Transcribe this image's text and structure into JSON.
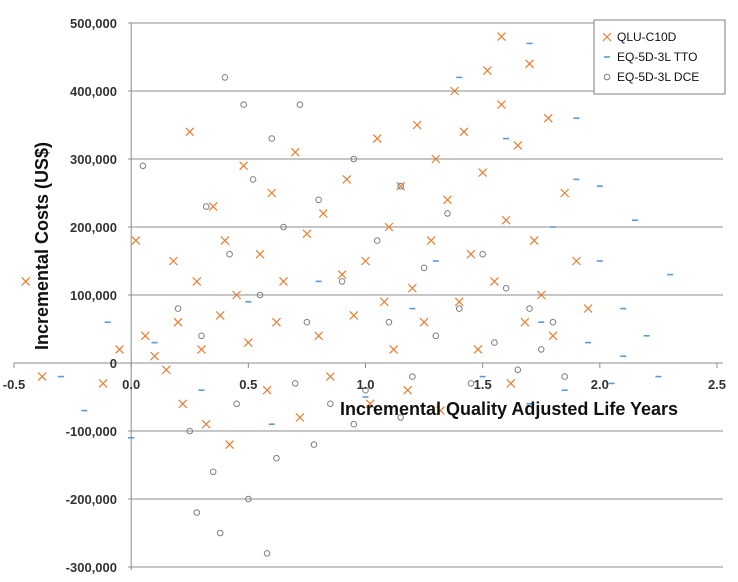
{
  "chart_data": {
    "type": "scatter",
    "title": "",
    "xlabel": "Incremental Quality Adjusted Life Years",
    "ylabel": "Incremental Costs (US$)",
    "xlim": [
      -0.5,
      2.5
    ],
    "ylim": [
      -300000,
      500000
    ],
    "x_ticks": [
      -0.5,
      0.0,
      0.5,
      1.0,
      1.5,
      2.0,
      2.5
    ],
    "x_tick_labels": [
      "-0.5",
      "0.0",
      "0.5",
      "1.0",
      "1.5",
      "2.0",
      "2.5"
    ],
    "y_ticks": [
      -300000,
      -200000,
      -100000,
      0,
      100000,
      200000,
      300000,
      400000,
      500000
    ],
    "y_tick_labels": [
      "-300,000",
      "-200,000",
      "-100,000",
      "0",
      "100,000",
      "200,000",
      "300,000",
      "400,000",
      "500,000"
    ],
    "grid": "horizontal",
    "legend_position": "top-right",
    "series": [
      {
        "name": "QLU-C10D",
        "marker": "x",
        "color": "#ED7D31",
        "values": [
          [
            -0.45,
            120000
          ],
          [
            -0.38,
            -20000
          ],
          [
            -0.12,
            -30000
          ],
          [
            -0.05,
            20000
          ],
          [
            0.02,
            180000
          ],
          [
            0.06,
            40000
          ],
          [
            0.1,
            10000
          ],
          [
            0.15,
            -10000
          ],
          [
            0.18,
            150000
          ],
          [
            0.2,
            60000
          ],
          [
            0.22,
            -60000
          ],
          [
            0.25,
            340000
          ],
          [
            0.28,
            120000
          ],
          [
            0.3,
            20000
          ],
          [
            0.32,
            -90000
          ],
          [
            0.35,
            230000
          ],
          [
            0.38,
            70000
          ],
          [
            0.4,
            180000
          ],
          [
            0.42,
            -120000
          ],
          [
            0.45,
            100000
          ],
          [
            0.48,
            290000
          ],
          [
            0.5,
            30000
          ],
          [
            0.55,
            160000
          ],
          [
            0.58,
            -40000
          ],
          [
            0.6,
            250000
          ],
          [
            0.62,
            60000
          ],
          [
            0.65,
            120000
          ],
          [
            0.7,
            310000
          ],
          [
            0.72,
            -80000
          ],
          [
            0.75,
            190000
          ],
          [
            0.8,
            40000
          ],
          [
            0.82,
            220000
          ],
          [
            0.85,
            -20000
          ],
          [
            0.9,
            130000
          ],
          [
            0.92,
            270000
          ],
          [
            0.95,
            70000
          ],
          [
            1.0,
            150000
          ],
          [
            1.02,
            -60000
          ],
          [
            1.05,
            330000
          ],
          [
            1.08,
            90000
          ],
          [
            1.1,
            200000
          ],
          [
            1.12,
            20000
          ],
          [
            1.15,
            260000
          ],
          [
            1.18,
            -40000
          ],
          [
            1.2,
            110000
          ],
          [
            1.22,
            350000
          ],
          [
            1.25,
            60000
          ],
          [
            1.28,
            180000
          ],
          [
            1.3,
            300000
          ],
          [
            1.32,
            -70000
          ],
          [
            1.35,
            240000
          ],
          [
            1.38,
            400000
          ],
          [
            1.4,
            90000
          ],
          [
            1.42,
            340000
          ],
          [
            1.45,
            160000
          ],
          [
            1.48,
            20000
          ],
          [
            1.5,
            280000
          ],
          [
            1.52,
            430000
          ],
          [
            1.55,
            120000
          ],
          [
            1.58,
            380000
          ],
          [
            1.6,
            210000
          ],
          [
            1.62,
            -30000
          ],
          [
            1.65,
            320000
          ],
          [
            1.68,
            60000
          ],
          [
            1.7,
            440000
          ],
          [
            1.72,
            180000
          ],
          [
            1.75,
            100000
          ],
          [
            1.78,
            360000
          ],
          [
            1.8,
            40000
          ],
          [
            1.85,
            250000
          ],
          [
            1.9,
            150000
          ],
          [
            1.95,
            80000
          ],
          [
            1.58,
            480000
          ]
        ]
      },
      {
        "name": "EQ-5D-3L TTO",
        "marker": "dash",
        "color": "#5B9BD5",
        "values": [
          [
            -0.3,
            -20000
          ],
          [
            -0.2,
            -70000
          ],
          [
            -0.1,
            60000
          ],
          [
            0.0,
            -110000
          ],
          [
            0.1,
            30000
          ],
          [
            0.3,
            -40000
          ],
          [
            0.5,
            90000
          ],
          [
            0.6,
            -90000
          ],
          [
            0.8,
            120000
          ],
          [
            1.0,
            -50000
          ],
          [
            1.2,
            80000
          ],
          [
            1.3,
            150000
          ],
          [
            1.4,
            420000
          ],
          [
            1.5,
            -20000
          ],
          [
            1.6,
            330000
          ],
          [
            1.7,
            470000
          ],
          [
            1.75,
            60000
          ],
          [
            1.8,
            200000
          ],
          [
            1.85,
            -40000
          ],
          [
            1.9,
            270000
          ],
          [
            1.95,
            30000
          ],
          [
            2.0,
            150000
          ],
          [
            2.05,
            -30000
          ],
          [
            2.1,
            80000
          ],
          [
            2.15,
            210000
          ],
          [
            2.2,
            40000
          ],
          [
            2.25,
            -20000
          ],
          [
            2.3,
            130000
          ],
          [
            1.9,
            360000
          ],
          [
            2.0,
            260000
          ],
          [
            1.7,
            -60000
          ],
          [
            2.1,
            10000
          ]
        ]
      },
      {
        "name": "EQ-5D-3L DCE",
        "marker": "circle",
        "color": "#7F7F7F",
        "values": [
          [
            0.05,
            290000
          ],
          [
            0.2,
            80000
          ],
          [
            0.25,
            -100000
          ],
          [
            0.28,
            -220000
          ],
          [
            0.3,
            40000
          ],
          [
            0.32,
            230000
          ],
          [
            0.35,
            -160000
          ],
          [
            0.38,
            -250000
          ],
          [
            0.4,
            420000
          ],
          [
            0.42,
            160000
          ],
          [
            0.45,
            -60000
          ],
          [
            0.48,
            380000
          ],
          [
            0.5,
            -200000
          ],
          [
            0.52,
            270000
          ],
          [
            0.55,
            100000
          ],
          [
            0.58,
            -280000
          ],
          [
            0.6,
            330000
          ],
          [
            0.62,
            -140000
          ],
          [
            0.65,
            200000
          ],
          [
            0.7,
            -30000
          ],
          [
            0.72,
            380000
          ],
          [
            0.75,
            60000
          ],
          [
            0.78,
            -120000
          ],
          [
            0.8,
            240000
          ],
          [
            0.85,
            -60000
          ],
          [
            0.9,
            120000
          ],
          [
            0.95,
            300000
          ],
          [
            1.0,
            -40000
          ],
          [
            1.05,
            180000
          ],
          [
            1.1,
            60000
          ],
          [
            1.15,
            260000
          ],
          [
            1.2,
            -20000
          ],
          [
            1.25,
            140000
          ],
          [
            1.3,
            40000
          ],
          [
            1.35,
            220000
          ],
          [
            1.4,
            80000
          ],
          [
            1.45,
            -30000
          ],
          [
            1.5,
            160000
          ],
          [
            1.55,
            30000
          ],
          [
            1.6,
            110000
          ],
          [
            1.65,
            -10000
          ],
          [
            1.7,
            80000
          ],
          [
            1.75,
            20000
          ],
          [
            1.8,
            60000
          ],
          [
            1.85,
            -20000
          ],
          [
            0.95,
            -90000
          ],
          [
            1.15,
            -80000
          ]
        ]
      }
    ]
  }
}
